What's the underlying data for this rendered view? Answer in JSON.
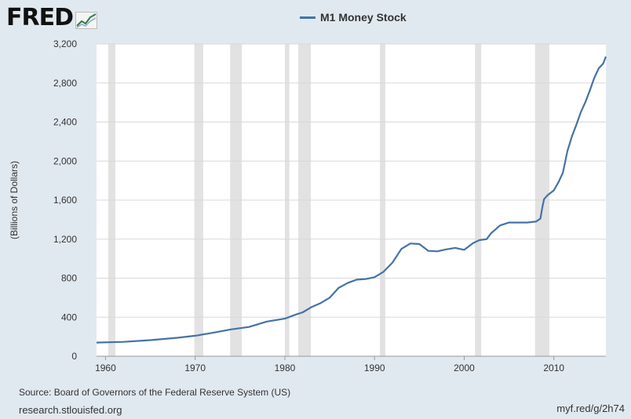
{
  "header": {
    "logo_text": "FRED"
  },
  "source_text": "Source: Board of Governors of the Federal Reserve System (US)",
  "site_text": "research.stlouisfed.org",
  "short_link": "myf.red/g/2h74",
  "colors": {
    "line": "#4572a7",
    "recession": "#e2e2e2",
    "grid": "#d8d8d8",
    "background": "#e1e9f0"
  },
  "chart_data": {
    "type": "line",
    "title": "",
    "xlabel": "",
    "ylabel": "(Billions of Dollars)",
    "xlim": [
      1959,
      2015.8
    ],
    "ylim": [
      0,
      3200
    ],
    "yticks": [
      0,
      400,
      800,
      1200,
      1600,
      2000,
      2400,
      2800,
      3200
    ],
    "ytick_labels": [
      "0",
      "400",
      "800",
      "1,200",
      "1,600",
      "2,000",
      "2,400",
      "2,800",
      "3,200"
    ],
    "xticks": [
      1960,
      1970,
      1980,
      1990,
      2000,
      2010
    ],
    "xtick_labels": [
      "1960",
      "1970",
      "1980",
      "1990",
      "2000",
      "2010"
    ],
    "grid": true,
    "legend_position": "top-center",
    "recessions": [
      [
        1960.3,
        1961.1
      ],
      [
        1969.9,
        1970.9
      ],
      [
        1973.9,
        1975.2
      ],
      [
        1980.0,
        1980.5
      ],
      [
        1981.5,
        1982.9
      ],
      [
        1990.6,
        1991.2
      ],
      [
        2001.2,
        2001.9
      ],
      [
        2007.9,
        2009.5
      ]
    ],
    "series": [
      {
        "name": "M1 Money Stock",
        "x": [
          1959.0,
          1962.0,
          1965.0,
          1968.0,
          1970.0,
          1972.0,
          1974.0,
          1976.0,
          1978.0,
          1980.0,
          1981.0,
          1982.0,
          1983.0,
          1984.0,
          1985.0,
          1986.0,
          1987.0,
          1988.0,
          1989.0,
          1990.0,
          1991.0,
          1992.0,
          1993.0,
          1994.0,
          1995.0,
          1996.0,
          1997.0,
          1998.0,
          1999.0,
          2000.0,
          2001.0,
          2001.7,
          2002.5,
          2003.0,
          2004.0,
          2005.0,
          2006.0,
          2007.0,
          2008.0,
          2008.5,
          2008.7,
          2008.9,
          2009.3,
          2010.0,
          2010.5,
          2011.0,
          2011.5,
          2012.0,
          2012.5,
          2013.0,
          2013.5,
          2014.0,
          2014.5,
          2015.0,
          2015.5,
          2015.8
        ],
        "values": [
          140,
          147,
          165,
          189,
          210,
          240,
          275,
          300,
          355,
          385,
          420,
          450,
          505,
          545,
          600,
          700,
          750,
          785,
          790,
          810,
          865,
          960,
          1100,
          1155,
          1150,
          1080,
          1075,
          1095,
          1110,
          1090,
          1160,
          1190,
          1200,
          1260,
          1340,
          1370,
          1370,
          1370,
          1380,
          1410,
          1520,
          1610,
          1650,
          1700,
          1780,
          1880,
          2100,
          2250,
          2370,
          2500,
          2600,
          2720,
          2850,
          2950,
          3000,
          3070
        ]
      }
    ]
  }
}
